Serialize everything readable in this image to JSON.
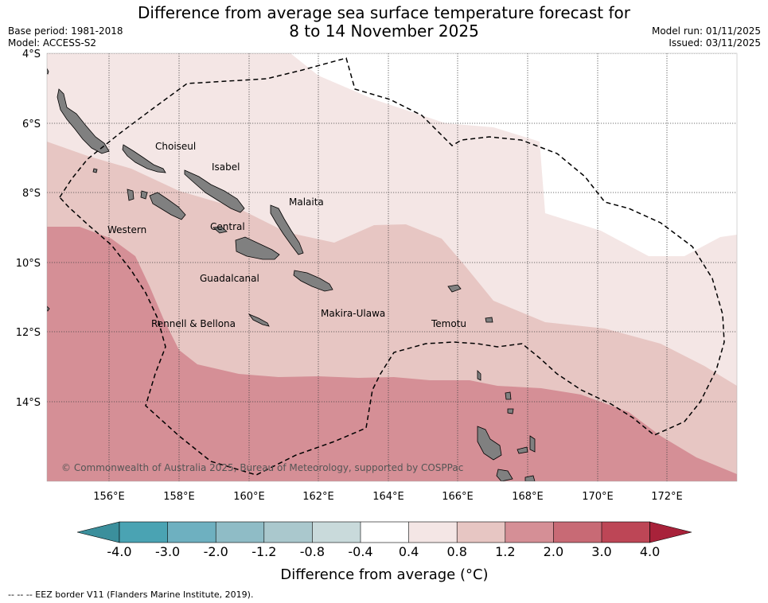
{
  "header": {
    "title_line1": "Difference from average sea surface temperature forecast for",
    "title_line2": "8 to 14 November 2025",
    "base_period": "Base period: 1981-2018",
    "model": "Model: ACCESS-S2",
    "model_run": "Model run: 01/11/2025",
    "issued": "Issued: 03/11/2025"
  },
  "map": {
    "lat_ticks": [
      "4°S",
      "6°S",
      "8°S",
      "10°S",
      "12°S",
      "14°S"
    ],
    "lon_ticks": [
      "156°E",
      "158°E",
      "160°E",
      "162°E",
      "164°E",
      "166°E",
      "168°E",
      "170°E",
      "172°E"
    ],
    "region_labels": [
      {
        "key": "choiseul",
        "text": "Choiseul"
      },
      {
        "key": "isabel",
        "text": "Isabel"
      },
      {
        "key": "malaita",
        "text": "Malaita"
      },
      {
        "key": "western",
        "text": "Western"
      },
      {
        "key": "central",
        "text": "Central"
      },
      {
        "key": "guadalcanal",
        "text": "Guadalcanal"
      },
      {
        "key": "makira",
        "text": "Makira-Ulawa"
      },
      {
        "key": "rennell",
        "text": "Rennell & Bellona"
      },
      {
        "key": "temotu",
        "text": "Temotu"
      }
    ],
    "copyright": "© Commonwealth of Australia 2025, Bureau of Meteorology, supported by COSPPac",
    "colors": {
      "band_0_4_0_8": "#f4e6e5",
      "band_0_8_1_2": "#e7c6c3",
      "band_1_2_2_0": "#d58f96",
      "land": "#808080",
      "eez_border": "#000000"
    }
  },
  "colorbar": {
    "labels": [
      "-4.0",
      "-3.0",
      "-2.0",
      "-1.2",
      "-0.8",
      "-0.4",
      "0.4",
      "0.8",
      "1.2",
      "2.0",
      "3.0",
      "4.0"
    ],
    "colors": [
      "#3b8f9c",
      "#4aa3b3",
      "#6eb0c0",
      "#8fbcc6",
      "#aac8cd",
      "#c9dadb",
      "#ffffff",
      "#f4e6e5",
      "#e7c6c3",
      "#d58f96",
      "#c86a75",
      "#bd4656",
      "#a8223a"
    ],
    "title": "Difference from average (°C)"
  },
  "footnote": "-- -- -- EEZ border V11 (Flanders Marine Institute, 2019)."
}
